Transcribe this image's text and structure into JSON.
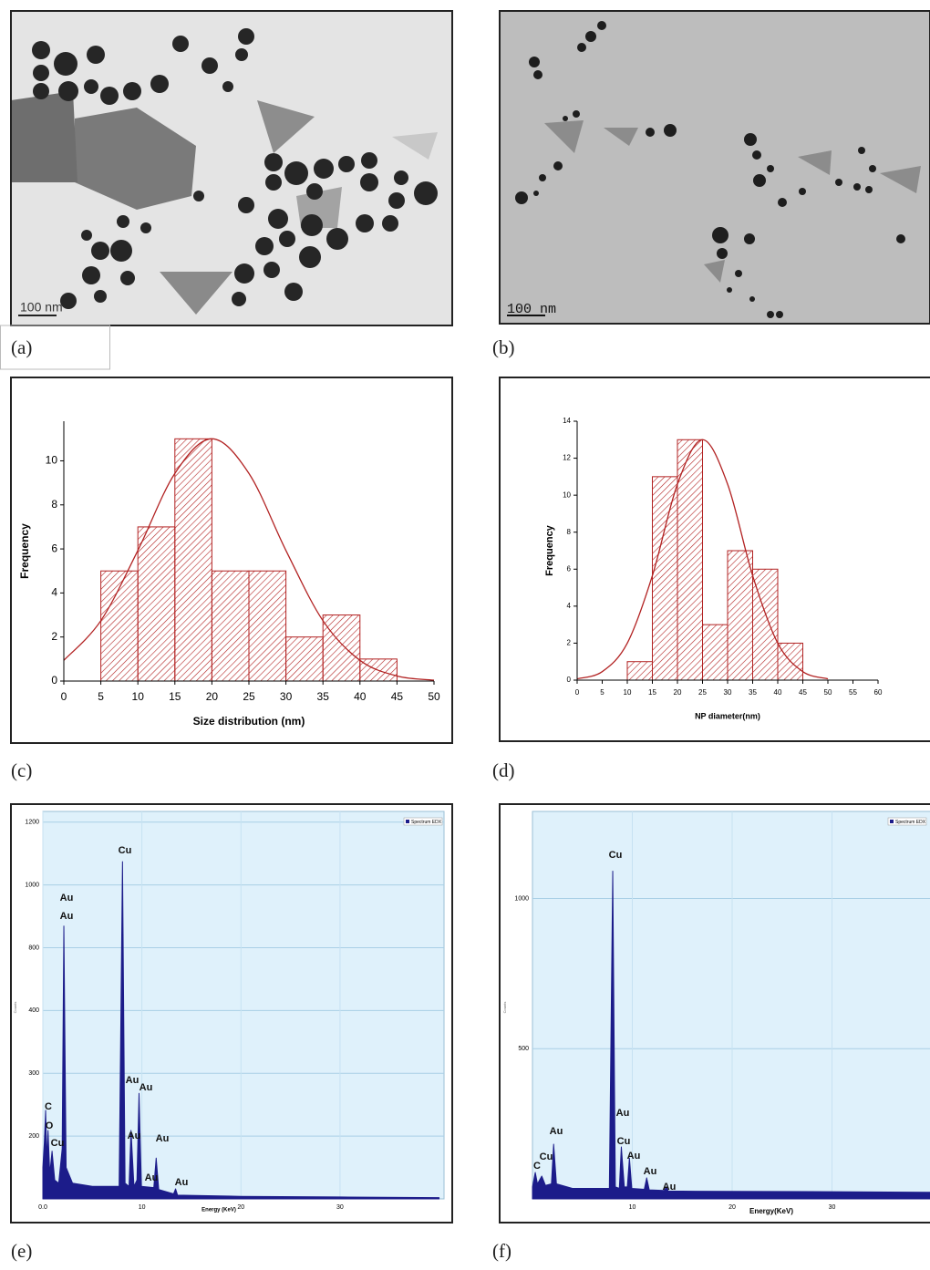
{
  "panels": {
    "labels": [
      "(a)",
      "(b)",
      "(c)",
      "(d)",
      "(e)",
      "(f)"
    ]
  },
  "images": [
    {
      "scale_bar": "100 nm"
    },
    {
      "scale_bar": "100 nm"
    }
  ],
  "chart_data": [
    {
      "type": "histogram",
      "bins": [
        5,
        10,
        15,
        20,
        25,
        30,
        35,
        40,
        45
      ],
      "values": [
        5,
        7,
        11,
        5,
        5,
        2,
        3,
        1
      ],
      "color": "#b22222",
      "x_label": "Size distribution (nm)",
      "y_label": "Frequency",
      "xlim": [
        0,
        50
      ],
      "xticks": [
        0,
        5,
        10,
        15,
        20,
        25,
        30,
        35,
        40,
        45,
        50
      ],
      "ylim": [
        0,
        11.8
      ],
      "yticks": [
        0,
        2,
        4,
        6,
        8,
        10
      ],
      "fit": {
        "x": [
          0,
          5,
          10,
          15,
          20,
          25,
          30,
          35,
          40,
          45,
          50
        ],
        "values": [
          0.94,
          2.74,
          5.93,
          9.43,
          11,
          9.43,
          5.93,
          2.74,
          0.94,
          0.23,
          0.04
        ]
      }
    },
    {
      "type": "histogram",
      "bins": [
        10,
        15,
        20,
        25,
        30,
        35,
        40,
        45
      ],
      "values": [
        1,
        11,
        13,
        3,
        7,
        6,
        2
      ],
      "color": "#b22222",
      "x_label": "NP diameter(nm)",
      "y_label": "Frequency",
      "xlim": [
        0,
        60
      ],
      "xticks": [
        0,
        5,
        10,
        15,
        20,
        25,
        30,
        35,
        40,
        45,
        50,
        55,
        60
      ],
      "ylim": [
        0,
        14
      ],
      "yticks": [
        0,
        2,
        4,
        6,
        8,
        10,
        12,
        14
      ],
      "fit": {
        "x": [
          0,
          5,
          10,
          15,
          20,
          25,
          30,
          35,
          40,
          45,
          50
        ],
        "values": [
          0.07,
          0.46,
          2.0,
          5.65,
          10.6,
          13,
          10.6,
          5.65,
          2.0,
          0.46,
          0.07
        ]
      }
    },
    {
      "type": "area",
      "x": [
        0,
        0.15,
        0.28,
        0.4,
        0.52,
        0.7,
        0.93,
        1.2,
        1.6,
        1.95,
        2.12,
        2.35,
        3,
        5,
        7.7,
        8.04,
        8.3,
        8.7,
        8.9,
        9.2,
        9.5,
        9.71,
        9.95,
        11.2,
        11.44,
        11.7,
        13.2,
        13.4,
        13.6,
        20,
        30,
        40
      ],
      "series": [
        {
          "name": "Spectrum EDX",
          "color": "#1c1c8a",
          "values": [
            150,
            190,
            241,
            160,
            209,
            140,
            176,
            130,
            125,
            180,
            869,
            150,
            125,
            120,
            120,
            1074,
            125,
            120,
            209,
            120,
            130,
            268,
            120,
            118,
            165,
            115,
            108,
            116,
            106,
            104,
            103,
            102
          ]
        }
      ],
      "x_label": "Energy (KeV)",
      "y_label": "Counts",
      "xlim": [
        0,
        40.5
      ],
      "xticks": [
        {
          "value": 0,
          "label": "0.0"
        },
        10,
        20,
        30
      ],
      "ylim": [
        100,
        1234
      ],
      "yticks": [
        200,
        300,
        400,
        800,
        1000,
        1200
      ],
      "yscale": "piecewise",
      "grid": true,
      "annotations": [
        "C",
        "O",
        "Cu",
        "Au",
        "Au",
        "Cu",
        "Au",
        "Au",
        "Au",
        "Au",
        "Au",
        "Au"
      ]
    },
    {
      "type": "area",
      "x": [
        0,
        0.28,
        0.5,
        0.93,
        1.3,
        1.9,
        2.12,
        2.4,
        4,
        7.7,
        8.04,
        8.3,
        8.7,
        8.9,
        9.2,
        9.5,
        9.71,
        9.95,
        11.2,
        11.44,
        11.7,
        13.2,
        13.4,
        13.6,
        20,
        30,
        40
      ],
      "series": [
        {
          "name": "Spectrum EDX",
          "color": "#1c1c8a",
          "values": [
            40,
            88,
            50,
            76,
            45,
            50,
            182,
            50,
            35,
            35,
            1091,
            40,
            35,
            173,
            40,
            40,
            136,
            35,
            32,
            70,
            30,
            28,
            40,
            26,
            25,
            24,
            22
          ]
        }
      ],
      "x_label": "Energy(KeV)",
      "y_label": "Counts",
      "xlim": [
        0,
        40
      ],
      "xticks": [
        10,
        20,
        30
      ],
      "ylim": [
        0,
        1290
      ],
      "yticks": [
        500,
        1000
      ],
      "yscale": "linear",
      "grid": true,
      "annotations": [
        "C",
        "Cu",
        "Au",
        "Cu",
        "Au",
        "Cu",
        "Au",
        "Au",
        "Au"
      ]
    }
  ]
}
